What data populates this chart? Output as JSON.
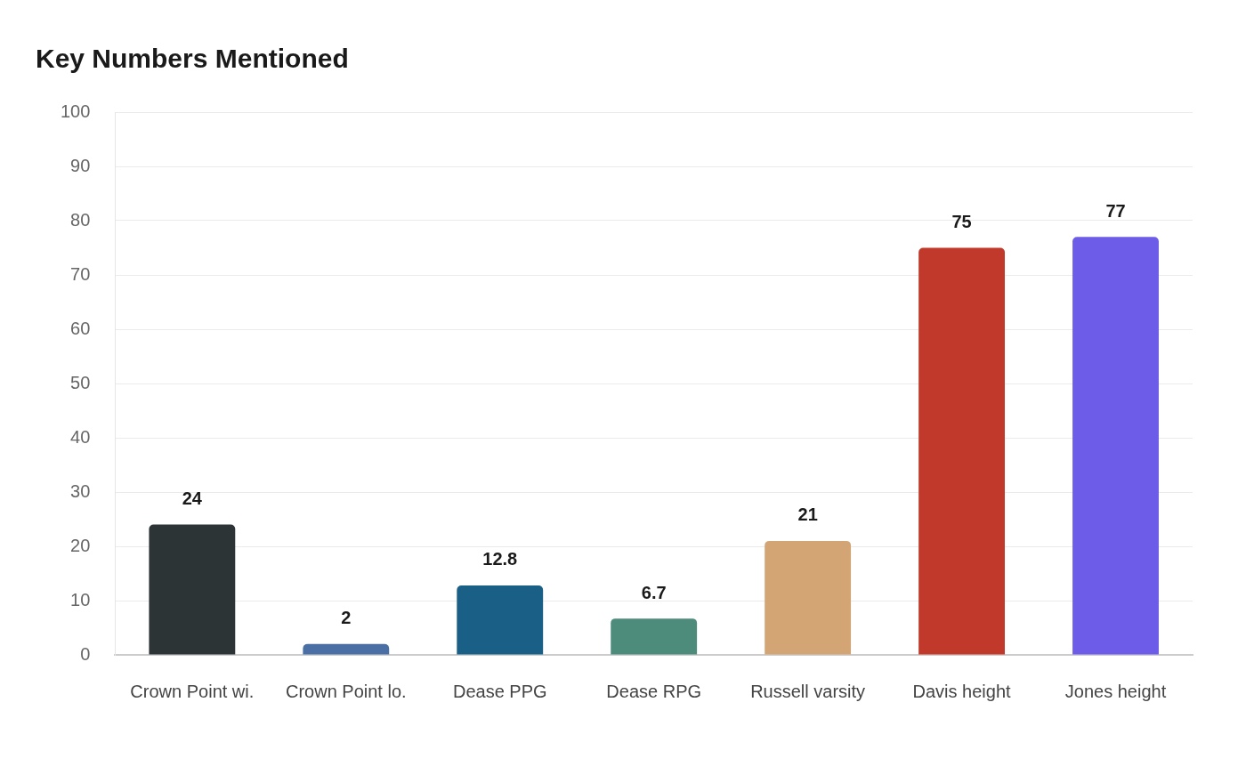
{
  "chart_data": {
    "type": "bar",
    "title": "Key Numbers Mentioned",
    "categories": [
      "Crown Point wi.",
      "Crown Point lo.",
      "Dease PPG",
      "Dease RPG",
      "Russell varsity",
      "Davis height",
      "Jones height"
    ],
    "values": [
      24,
      2,
      12.8,
      6.7,
      21,
      75,
      77
    ],
    "colors": [
      "#2d3436",
      "#4a6fa5",
      "#1a5f85",
      "#4d8c7a",
      "#d4a574",
      "#c0392b",
      "#6c5ce7"
    ],
    "ylim": [
      0,
      100
    ],
    "yticks": [
      0,
      10,
      20,
      30,
      40,
      50,
      60,
      70,
      80,
      90,
      100
    ],
    "grid": "y",
    "data_labels": true
  }
}
